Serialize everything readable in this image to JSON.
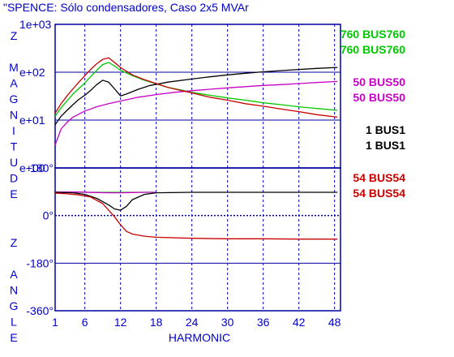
{
  "chart_data": {
    "type": "line",
    "title": "\"SPENCE: Sólo condensadores, Caso 2x5 MVAr",
    "xlabel": "HARMONIC",
    "x_ticks": [
      1,
      6,
      12,
      18,
      24,
      30,
      36,
      42,
      48
    ],
    "xlim": [
      1,
      49
    ],
    "grid": true,
    "legend_position": "right",
    "magnitude_panel": {
      "ylabel": "Z MAGNITUDE",
      "scale": "log",
      "ylim": [
        1,
        1000
      ],
      "y_ticks": [
        "1e+03",
        "e+02",
        "e+01",
        "e+00"
      ]
    },
    "angle_panel": {
      "ylabel": "Z ANGLE",
      "ylim": [
        -360,
        180
      ],
      "y_ticks": [
        "180°",
        "0°",
        "-180°",
        "-360°"
      ]
    },
    "legend": [
      {
        "line1": "760  BUS760",
        "line2": "760  BUS760",
        "color": "#00c800"
      },
      {
        "line1": "50  BUS50",
        "line2": "50  BUS50",
        "color": "#c800c8"
      },
      {
        "line1": "1  BUS1",
        "line2": "1  BUS1",
        "color": "#000000"
      },
      {
        "line1": "54  BUS54",
        "line2": "54  BUS54",
        "color": "#c80000"
      }
    ],
    "series": [
      {
        "id": "bus760",
        "color": "#00c800",
        "magnitude": [
          [
            1,
            12
          ],
          [
            2,
            18
          ],
          [
            4,
            35
          ],
          [
            6,
            60
          ],
          [
            8,
            110
          ],
          [
            9,
            145
          ],
          [
            10,
            160
          ],
          [
            11,
            135
          ],
          [
            12,
            110
          ],
          [
            14,
            85
          ],
          [
            16,
            68
          ],
          [
            18,
            57
          ],
          [
            20,
            48
          ],
          [
            22,
            43
          ],
          [
            24,
            38
          ],
          [
            27,
            33
          ],
          [
            30,
            29
          ],
          [
            33,
            26
          ],
          [
            36,
            23
          ],
          [
            39,
            21
          ],
          [
            42,
            19
          ],
          [
            45,
            17.5
          ],
          [
            48.5,
            16
          ]
        ],
        "angle": [
          [
            1,
            88
          ],
          [
            18,
            88
          ]
        ]
      },
      {
        "id": "bus50",
        "color": "#c800c8",
        "magnitude": [
          [
            1,
            3
          ],
          [
            2,
            6.5
          ],
          [
            3,
            9
          ],
          [
            4,
            11.5
          ],
          [
            6,
            15.5
          ],
          [
            8,
            19
          ],
          [
            10,
            22
          ],
          [
            12,
            25
          ],
          [
            15,
            30
          ],
          [
            18,
            34
          ],
          [
            21,
            38
          ],
          [
            24,
            41
          ],
          [
            27,
            44
          ],
          [
            30,
            47
          ],
          [
            33,
            50
          ],
          [
            36,
            53
          ],
          [
            39,
            55
          ],
          [
            42,
            58
          ],
          [
            45,
            61
          ],
          [
            48.5,
            64
          ]
        ],
        "angle": [
          [
            1,
            89
          ],
          [
            5,
            89
          ],
          [
            8,
            87
          ],
          [
            10,
            86
          ],
          [
            12,
            86
          ],
          [
            14,
            87
          ],
          [
            16,
            88
          ],
          [
            18,
            88
          ]
        ]
      },
      {
        "id": "bus1",
        "color": "#000000",
        "magnitude": [
          [
            1,
            8
          ],
          [
            2,
            12
          ],
          [
            3,
            16
          ],
          [
            4,
            21
          ],
          [
            5,
            27
          ],
          [
            6,
            33
          ],
          [
            7,
            42
          ],
          [
            8,
            55
          ],
          [
            9,
            68
          ],
          [
            10,
            62
          ],
          [
            11,
            45
          ],
          [
            12,
            32
          ],
          [
            13,
            35
          ],
          [
            15,
            44
          ],
          [
            17,
            53
          ],
          [
            20,
            62
          ],
          [
            24,
            72
          ],
          [
            27,
            80
          ],
          [
            30,
            88
          ],
          [
            33,
            95
          ],
          [
            36,
            102
          ],
          [
            39,
            108
          ],
          [
            42,
            114
          ],
          [
            45,
            120
          ],
          [
            48.5,
            126
          ]
        ],
        "angle": [
          [
            1,
            88
          ],
          [
            4,
            86
          ],
          [
            6,
            80
          ],
          [
            8,
            65
          ],
          [
            10,
            40
          ],
          [
            11,
            25
          ],
          [
            12,
            20
          ],
          [
            13,
            35
          ],
          [
            14,
            60
          ],
          [
            16,
            80
          ],
          [
            18,
            86
          ],
          [
            24,
            88
          ],
          [
            48.5,
            88
          ]
        ]
      },
      {
        "id": "bus54",
        "color": "#c80000",
        "magnitude": [
          [
            1,
            14
          ],
          [
            2,
            22
          ],
          [
            3,
            32
          ],
          [
            4,
            45
          ],
          [
            5,
            62
          ],
          [
            6,
            85
          ],
          [
            7,
            115
          ],
          [
            8,
            150
          ],
          [
            9,
            185
          ],
          [
            10,
            200
          ],
          [
            11,
            160
          ],
          [
            12,
            125
          ],
          [
            14,
            88
          ],
          [
            16,
            70
          ],
          [
            18,
            58
          ],
          [
            20,
            48
          ],
          [
            22,
            42
          ],
          [
            24,
            37
          ],
          [
            27,
            30
          ],
          [
            30,
            26
          ],
          [
            33,
            22
          ],
          [
            36,
            19.5
          ],
          [
            39,
            17
          ],
          [
            42,
            15
          ],
          [
            45,
            13
          ],
          [
            48.5,
            11.5
          ]
        ],
        "angle": [
          [
            1,
            85
          ],
          [
            3,
            82
          ],
          [
            5,
            78
          ],
          [
            7,
            70
          ],
          [
            9,
            45
          ],
          [
            10,
            20
          ],
          [
            11,
            -5
          ],
          [
            12,
            -35
          ],
          [
            13,
            -60
          ],
          [
            14,
            -70
          ],
          [
            16,
            -78
          ],
          [
            18,
            -82
          ],
          [
            24,
            -86
          ],
          [
            30,
            -88
          ],
          [
            36,
            -88
          ],
          [
            42,
            -89
          ],
          [
            48.5,
            -89
          ]
        ]
      }
    ]
  }
}
